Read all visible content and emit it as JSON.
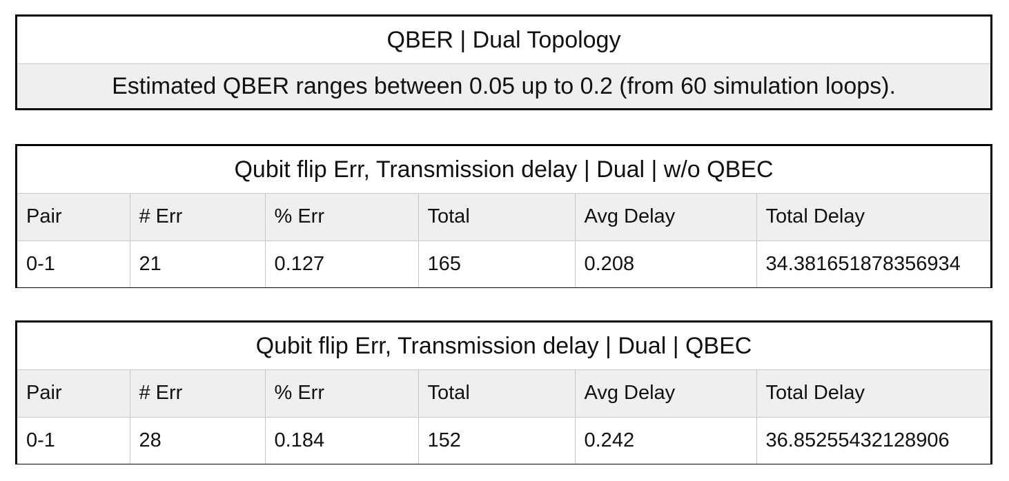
{
  "qber_panel": {
    "title": "QBER | Dual Topology",
    "description": "Estimated QBER ranges between 0.05 up to 0.2 (from 60 simulation loops)."
  },
  "table_no_qbec": {
    "title": "Qubit flip Err, Transmission delay | Dual | w/o QBEC",
    "headers": [
      "Pair",
      "# Err",
      "% Err",
      "Total",
      "Avg Delay",
      "Total Delay"
    ],
    "rows": [
      [
        "0-1",
        "21",
        "0.127",
        "165",
        "0.208",
        "34.381651878356934"
      ]
    ]
  },
  "table_qbec": {
    "title": "Qubit flip Err, Transmission delay | Dual | QBEC",
    "headers": [
      "Pair",
      "# Err",
      "% Err",
      "Total",
      "Avg Delay",
      "Total Delay"
    ],
    "rows": [
      [
        "0-1",
        "28",
        "0.184",
        "152",
        "0.242",
        "36.85255432128906"
      ]
    ]
  }
}
